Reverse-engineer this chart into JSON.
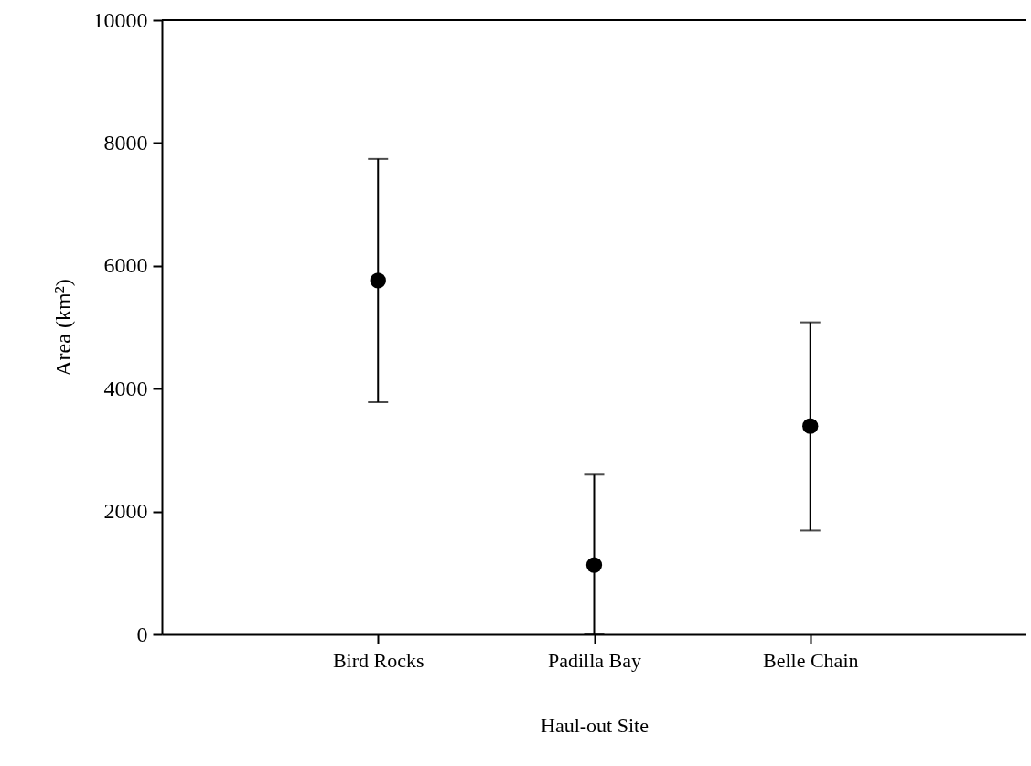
{
  "chart_data": {
    "type": "scatter",
    "xlabel": "Haul-out Site",
    "ylabel": "Area (km²)",
    "categories": [
      "Bird Rocks",
      "Padilla Bay",
      "Belle Chain"
    ],
    "series": [
      {
        "color": "#000000",
        "values": [
          5760,
          1130,
          3390
        ],
        "errors": [
          [
            3780,
            7740
          ],
          [
            0,
            2600
          ],
          [
            1690,
            5080
          ]
        ]
      }
    ],
    "ylim": [
      0,
      10000
    ],
    "yticks": [
      0,
      2000,
      4000,
      6000,
      8000,
      10000
    ],
    "marker": "circle",
    "grid": false
  }
}
